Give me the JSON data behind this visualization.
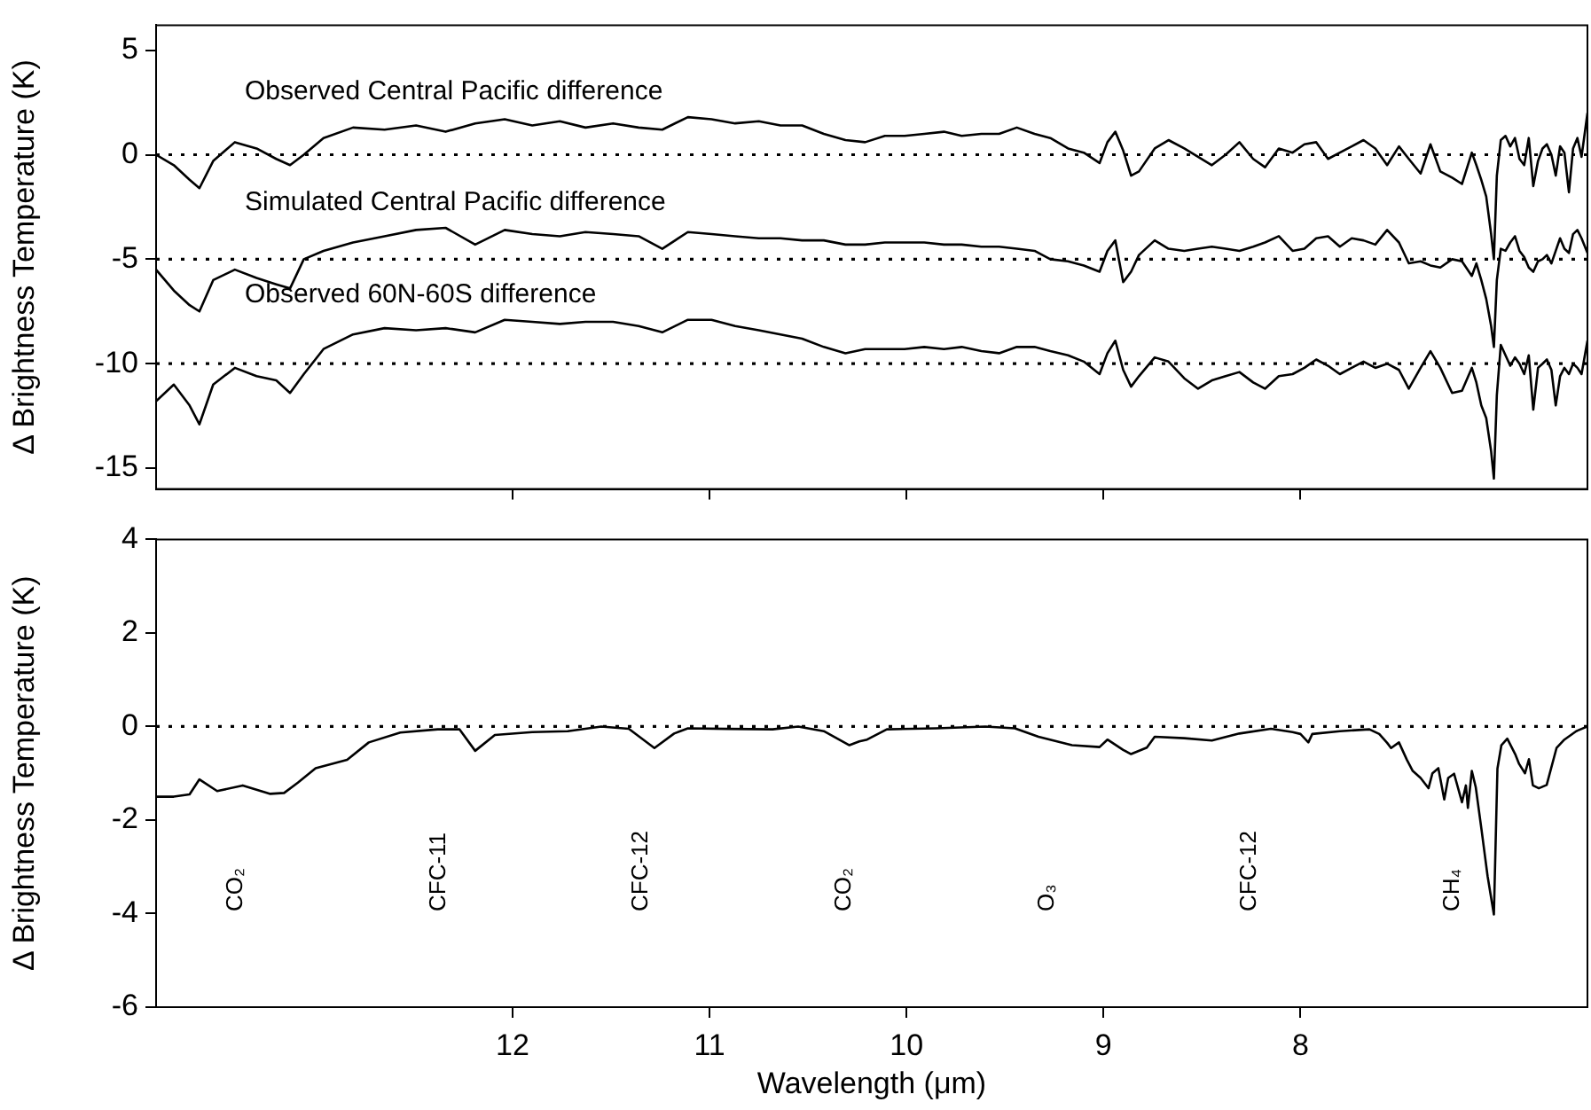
{
  "chart_data": [
    {
      "type": "line",
      "ylabel": "Δ Brightness Temperature (K)",
      "x": [
        13.81,
        13.72,
        13.64,
        13.59,
        13.52,
        13.41,
        13.3,
        13.2,
        13.13,
        13.06,
        12.96,
        12.81,
        12.65,
        12.49,
        12.34,
        12.19,
        12.04,
        11.9,
        11.76,
        11.63,
        11.49,
        11.36,
        11.24,
        11.11,
        10.99,
        10.87,
        10.75,
        10.64,
        10.53,
        10.42,
        10.31,
        10.21,
        10.11,
        10.01,
        9.91,
        9.81,
        9.72,
        9.62,
        9.53,
        9.44,
        9.35,
        9.27,
        9.18,
        9.1,
        9.02,
        8.98,
        8.94,
        8.9,
        8.86,
        8.82,
        8.74,
        8.67,
        8.59,
        8.52,
        8.45,
        8.38,
        8.31,
        8.24,
        8.18,
        8.11,
        8.04,
        7.98,
        7.92,
        7.86,
        7.8,
        7.74,
        7.68,
        7.62,
        7.56,
        7.5,
        7.45,
        7.39,
        7.34,
        7.29,
        7.23,
        7.18,
        7.13,
        7.107,
        7.082,
        7.057,
        7.032,
        7.018,
        7.003,
        6.983,
        6.959,
        6.935,
        6.911,
        6.888,
        6.864,
        6.841,
        6.818,
        6.794,
        6.771,
        6.749,
        6.726,
        6.704,
        6.682,
        6.66,
        6.637,
        6.616,
        6.594,
        6.573,
        6.543
      ],
      "series": [
        {
          "name": "Observed Central Pacific difference",
          "color": "#000000",
          "values": [
            0,
            -0.5,
            -1.2,
            -1.6,
            -0.3,
            0.6,
            0.3,
            -0.2,
            -0.5,
            0,
            0.8,
            1.3,
            1.2,
            1.4,
            1.1,
            1.5,
            1.7,
            1.4,
            1.6,
            1.3,
            1.5,
            1.3,
            1.2,
            1.8,
            1.7,
            1.5,
            1.6,
            1.4,
            1.4,
            1.0,
            0.7,
            0.6,
            0.9,
            0.9,
            1.0,
            1.1,
            0.9,
            1.0,
            1.0,
            1.3,
            1.0,
            0.8,
            0.3,
            0.1,
            -0.4,
            0.6,
            1.1,
            0.2,
            -1.0,
            -0.8,
            0.3,
            0.7,
            0.3,
            -0.1,
            -0.5,
            0,
            0.6,
            -0.2,
            -0.6,
            0.3,
            0.1,
            0.5,
            0.6,
            -0.2,
            0.1,
            0.4,
            0.7,
            0.3,
            -0.5,
            0.4,
            -0.2,
            -0.9,
            0.5,
            -0.8,
            -1.1,
            -1.4,
            0.1,
            -0.5,
            -1.2,
            -2.0,
            -3.8,
            -5.0,
            -1.0,
            0.7,
            0.9,
            0.4,
            0.8,
            -0.2,
            -0.5,
            0.8,
            -1.5,
            -0.3,
            0.3,
            0.5,
            0.0,
            -1.0,
            0.4,
            0.1,
            -1.8,
            0.3,
            0.8,
            -0.1,
            2.0
          ]
        },
        {
          "name": "Simulated Central Pacific difference",
          "color": "#000000",
          "values": [
            -5.5,
            -6.5,
            -7.2,
            -7.5,
            -6.0,
            -5.5,
            -5.9,
            -6.2,
            -6.4,
            -5.0,
            -4.6,
            -4.2,
            -3.9,
            -3.6,
            -3.5,
            -4.3,
            -3.6,
            -3.8,
            -3.9,
            -3.7,
            -3.8,
            -3.9,
            -4.5,
            -3.7,
            -3.8,
            -3.9,
            -4.0,
            -4.0,
            -4.1,
            -4.1,
            -4.3,
            -4.3,
            -4.2,
            -4.2,
            -4.2,
            -4.3,
            -4.3,
            -4.4,
            -4.4,
            -4.5,
            -4.6,
            -5.0,
            -5.1,
            -5.3,
            -5.6,
            -4.6,
            -4.1,
            -6.1,
            -5.6,
            -4.8,
            -4.1,
            -4.5,
            -4.6,
            -4.5,
            -4.4,
            -4.5,
            -4.6,
            -4.4,
            -4.2,
            -3.9,
            -4.6,
            -4.5,
            -4.0,
            -3.9,
            -4.4,
            -4.0,
            -4.1,
            -4.3,
            -3.6,
            -4.2,
            -5.2,
            -5.1,
            -5.3,
            -5.4,
            -5.0,
            -5.1,
            -5.8,
            -5.2,
            -6.0,
            -6.9,
            -8.2,
            -9.2,
            -6.0,
            -4.5,
            -4.6,
            -4.2,
            -3.9,
            -4.6,
            -4.9,
            -5.4,
            -5.6,
            -5.1,
            -5.0,
            -4.8,
            -5.2,
            -4.6,
            -4.0,
            -4.5,
            -4.7,
            -3.8,
            -3.6,
            -4.0,
            -4.7
          ]
        },
        {
          "name": "Observed 60N-60S difference",
          "color": "#000000",
          "values": [
            -11.8,
            -11.0,
            -12.0,
            -12.9,
            -11.0,
            -10.2,
            -10.6,
            -10.8,
            -11.4,
            -10.5,
            -9.3,
            -8.6,
            -8.3,
            -8.4,
            -8.3,
            -8.5,
            -7.9,
            -8.0,
            -8.1,
            -8.0,
            -8.0,
            -8.2,
            -8.5,
            -7.9,
            -7.9,
            -8.2,
            -8.4,
            -8.6,
            -8.8,
            -9.2,
            -9.5,
            -9.3,
            -9.3,
            -9.3,
            -9.2,
            -9.3,
            -9.2,
            -9.4,
            -9.5,
            -9.2,
            -9.2,
            -9.4,
            -9.6,
            -9.9,
            -10.5,
            -9.5,
            -8.9,
            -10.3,
            -11.1,
            -10.6,
            -9.7,
            -9.9,
            -10.7,
            -11.2,
            -10.8,
            -10.6,
            -10.4,
            -10.9,
            -11.2,
            -10.6,
            -10.5,
            -10.2,
            -9.8,
            -10.1,
            -10.5,
            -10.2,
            -9.9,
            -10.2,
            -10.0,
            -10.3,
            -11.2,
            -10.2,
            -9.4,
            -10.2,
            -11.4,
            -11.3,
            -10.2,
            -10.9,
            -12.0,
            -12.6,
            -14.2,
            -15.5,
            -11.5,
            -9.1,
            -9.6,
            -10.1,
            -9.7,
            -10.0,
            -10.5,
            -9.6,
            -12.2,
            -10.2,
            -10.0,
            -9.8,
            -10.3,
            -12.0,
            -10.6,
            -10.2,
            -10.5,
            -10.0,
            -10.2,
            -10.5,
            -8.9
          ]
        }
      ],
      "xlim": [
        13.81,
        6.543
      ],
      "xticks": [
        12,
        11,
        10,
        9,
        8
      ],
      "ylim": [
        -16,
        6.2
      ],
      "yticks": [
        5,
        0,
        -5,
        -10,
        -15
      ],
      "tick_labels": "y",
      "legend": false,
      "marker": "none",
      "line_style": "solid",
      "ref_lines": [
        {
          "axis": "y",
          "value": 0,
          "color": "#000000",
          "line_style": "dotted"
        },
        {
          "axis": "y",
          "value": -5,
          "color": "#000000",
          "line_style": "dotted"
        },
        {
          "axis": "y",
          "value": -10,
          "color": "#000000",
          "line_style": "dotted"
        }
      ]
    },
    {
      "type": "line",
      "ylabel": "Δ Brightness Temperature (K)",
      "xlabel": "Wavelength (μm)",
      "x": [
        13.81,
        13.72,
        13.64,
        13.59,
        13.5,
        13.37,
        13.23,
        13.16,
        13.09,
        13.0,
        12.84,
        12.73,
        12.57,
        12.38,
        12.27,
        12.19,
        12.09,
        11.9,
        11.72,
        11.55,
        11.41,
        11.28,
        11.18,
        11.11,
        10.91,
        10.68,
        10.55,
        10.42,
        10.29,
        10.24,
        10.2,
        10.1,
        9.85,
        9.6,
        9.45,
        9.33,
        9.16,
        9.02,
        8.98,
        8.9,
        8.86,
        8.78,
        8.74,
        8.59,
        8.45,
        8.31,
        8.15,
        8.04,
        8.0,
        7.96,
        7.94,
        7.8,
        7.65,
        7.6,
        7.56,
        7.54,
        7.5,
        7.46,
        7.43,
        7.39,
        7.35,
        7.33,
        7.3,
        7.27,
        7.25,
        7.22,
        7.18,
        7.16,
        7.15,
        7.13,
        7.11,
        7.08,
        7.05,
        7.018,
        7.0,
        6.98,
        6.95,
        6.91,
        6.89,
        6.86,
        6.84,
        6.82,
        6.79,
        6.75,
        6.7,
        6.66,
        6.6,
        6.543
      ],
      "series": [
        {
          "color": "#000000",
          "values": [
            -1.5,
            -1.5,
            -1.45,
            -1.13,
            -1.38,
            -1.26,
            -1.44,
            -1.42,
            -1.2,
            -0.89,
            -0.71,
            -0.34,
            -0.13,
            -0.06,
            -0.06,
            -0.52,
            -0.18,
            -0.12,
            -0.1,
            0,
            -0.05,
            -0.46,
            -0.15,
            -0.04,
            -0.05,
            -0.06,
            0,
            -0.1,
            -0.4,
            -0.32,
            -0.28,
            -0.06,
            -0.04,
            0,
            -0.04,
            -0.22,
            -0.4,
            -0.44,
            -0.28,
            -0.5,
            -0.59,
            -0.45,
            -0.22,
            -0.25,
            -0.3,
            -0.15,
            -0.05,
            -0.12,
            -0.16,
            -0.34,
            -0.16,
            -0.1,
            -0.06,
            -0.16,
            -0.35,
            -0.46,
            -0.34,
            -0.71,
            -0.95,
            -1.1,
            -1.32,
            -1.0,
            -0.89,
            -1.56,
            -1.1,
            -1.01,
            -1.62,
            -1.26,
            -1.74,
            -0.95,
            -1.3,
            -2.23,
            -3.2,
            -4.02,
            -0.9,
            -0.4,
            -0.26,
            -0.59,
            -0.8,
            -1.0,
            -0.7,
            -1.26,
            -1.32,
            -1.25,
            -0.46,
            -0.28,
            -0.1,
            0.0
          ]
        }
      ],
      "xlim": [
        13.81,
        6.543
      ],
      "xticks": [
        12,
        11,
        10,
        9,
        8
      ],
      "ylim": [
        -6,
        4
      ],
      "yticks": [
        4,
        2,
        0,
        -2,
        -4,
        -6
      ],
      "legend": false,
      "marker": "none",
      "line_style": "solid",
      "ref_lines": [
        {
          "axis": "y",
          "value": 0,
          "color": "#000000",
          "line_style": "dotted"
        }
      ],
      "annotations": [
        "CO₂",
        "CFC-11",
        "CFC-12",
        "CO₂",
        "O₃",
        "CFC-12",
        "CH₄"
      ]
    }
  ]
}
